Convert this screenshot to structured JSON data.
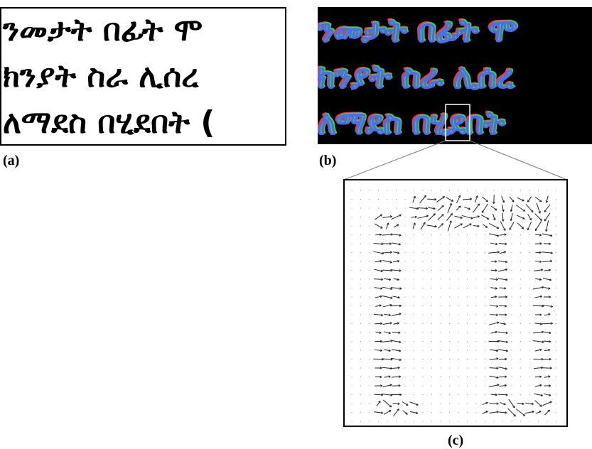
{
  "figure": {
    "panel_a": {
      "label": "(a)",
      "lines": [
        "ንመታት በፊት ሞ",
        "ክንያት ስራ ሊሰረ",
        "ለማደስ በሂደበት ("
      ]
    },
    "panel_b": {
      "label": "(b)",
      "lines": [
        "ንመታት በፊት ሞ",
        "ክንያት ስራ ሊሰረ",
        "ለማደስ በሂደበት"
      ]
    },
    "panel_c": {
      "label": "(c)"
    }
  }
}
